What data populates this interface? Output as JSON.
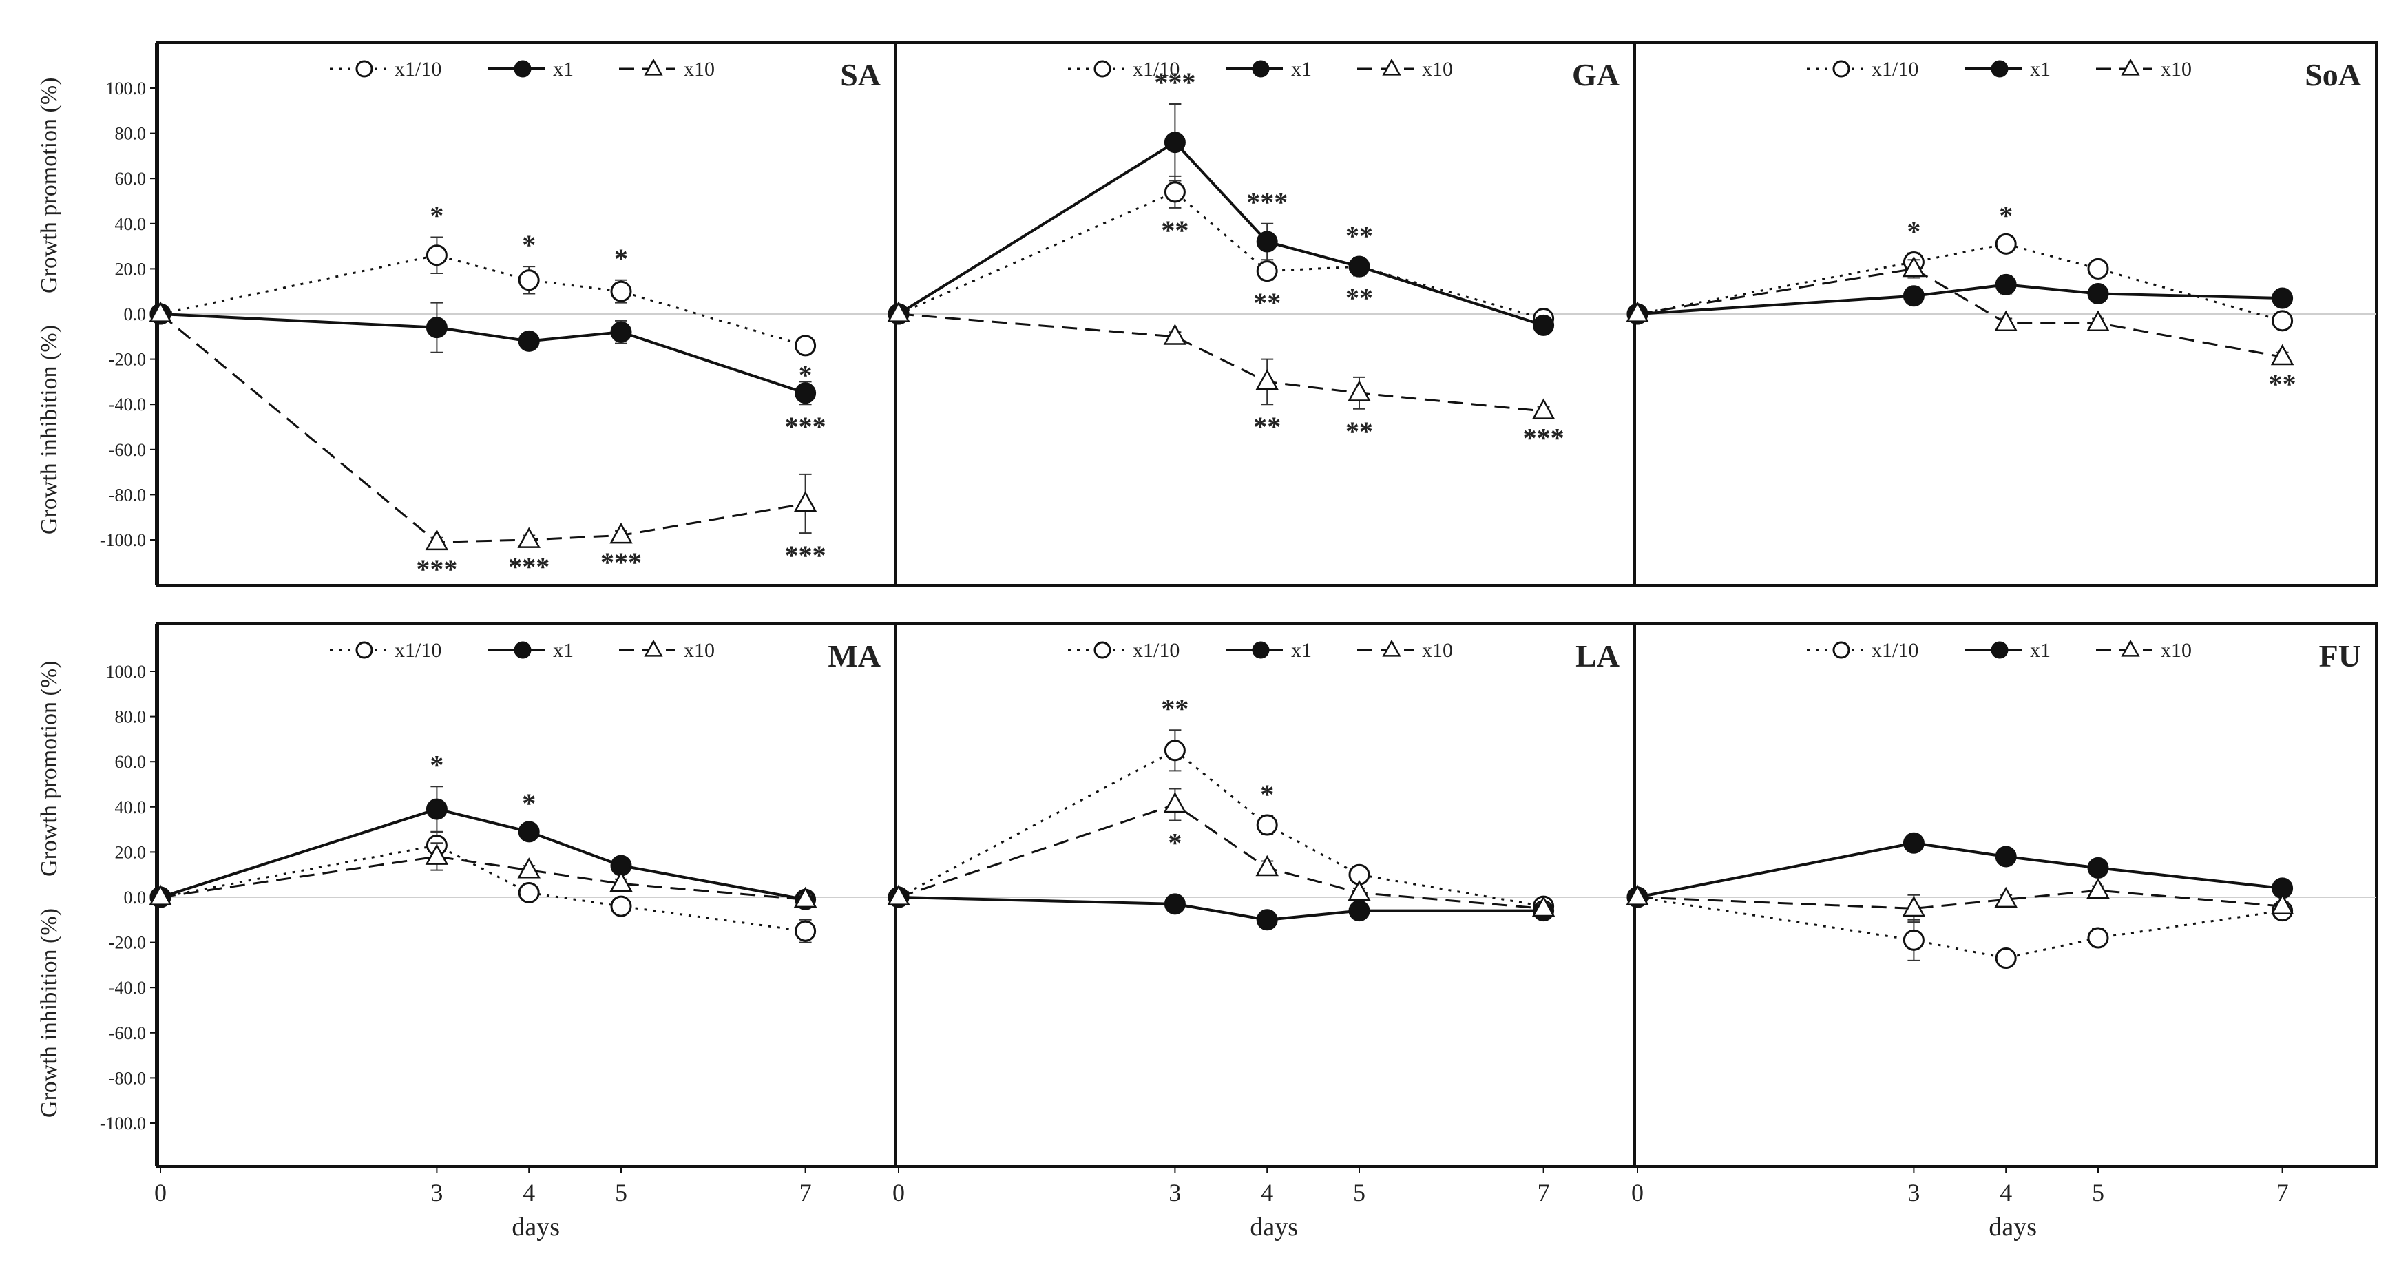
{
  "figure": {
    "ylabel_top": "Growth promotion (%)",
    "ylabel_bottom": "Growth inhibition (%)",
    "xlabel": "days",
    "yticks": [
      "100.0",
      "80.0",
      "60.0",
      "40.0",
      "20.0",
      "0.0",
      "-20.0",
      "-40.0",
      "-60.0",
      "-80.0",
      "-100.0"
    ],
    "xticks": [
      "0",
      "3",
      "4",
      "5",
      "7"
    ],
    "legend": [
      "x1/10",
      "x1",
      "x10"
    ]
  },
  "chart_data": [
    {
      "type": "line",
      "title": "SA",
      "xlabel": "days",
      "ylabel": "Growth promotion (%) / Growth inhibition (%)",
      "x": [
        0,
        3,
        4,
        5,
        7
      ],
      "ylim": [
        -120,
        120
      ],
      "series": [
        {
          "name": "x1/10",
          "values": [
            0,
            26,
            15,
            10,
            -14
          ],
          "errors": [
            0,
            8,
            6,
            5,
            3
          ],
          "stars": [
            "",
            "*",
            "*",
            "*",
            "*"
          ]
        },
        {
          "name": "x1",
          "values": [
            0,
            -6,
            -12,
            -8,
            -35
          ],
          "errors": [
            0,
            11,
            3,
            5,
            5
          ],
          "stars": [
            "",
            "",
            "",
            "",
            "***"
          ]
        },
        {
          "name": "x10",
          "values": [
            0,
            -101,
            -100,
            -98,
            -84
          ],
          "errors": [
            0,
            2,
            2,
            2,
            13
          ],
          "stars": [
            "",
            "***",
            "***",
            "***",
            "***"
          ]
        }
      ]
    },
    {
      "type": "line",
      "title": "GA",
      "xlabel": "days",
      "ylabel": "Growth promotion (%) / Growth inhibition (%)",
      "x": [
        0,
        3,
        4,
        5,
        7
      ],
      "ylim": [
        -120,
        120
      ],
      "series": [
        {
          "name": "x1/10",
          "values": [
            0,
            54,
            19,
            21,
            -2
          ],
          "errors": [
            0,
            7,
            4,
            4,
            2
          ],
          "stars": [
            "",
            "**",
            "**",
            "**",
            ""
          ]
        },
        {
          "name": "x1",
          "values": [
            0,
            76,
            32,
            21,
            -5
          ],
          "errors": [
            0,
            17,
            8,
            4,
            2
          ],
          "stars": [
            "",
            "***",
            "***",
            "**",
            ""
          ]
        },
        {
          "name": "x10",
          "values": [
            0,
            -10,
            -30,
            -35,
            -43
          ],
          "errors": [
            0,
            2,
            10,
            7,
            2
          ],
          "stars": [
            "",
            "",
            "**",
            "**",
            "***"
          ]
        }
      ]
    },
    {
      "type": "line",
      "title": "SoA",
      "xlabel": "days",
      "ylabel": "Growth promotion (%) / Growth inhibition (%)",
      "x": [
        0,
        3,
        4,
        5,
        7
      ],
      "ylim": [
        -120,
        120
      ],
      "series": [
        {
          "name": "x1/10",
          "values": [
            0,
            23,
            31,
            20,
            -3
          ],
          "errors": [
            0,
            4,
            3,
            2,
            2
          ],
          "stars": [
            "",
            "*",
            "*",
            "",
            ""
          ]
        },
        {
          "name": "x1",
          "values": [
            0,
            8,
            13,
            9,
            7
          ],
          "errors": [
            0,
            2,
            4,
            2,
            2
          ],
          "stars": [
            "",
            "",
            "",
            "",
            ""
          ]
        },
        {
          "name": "x10",
          "values": [
            0,
            20,
            -4,
            -4,
            -19
          ],
          "errors": [
            0,
            4,
            2,
            2,
            2
          ],
          "stars": [
            "",
            "",
            "",
            "",
            "**"
          ]
        }
      ]
    },
    {
      "type": "line",
      "title": "MA",
      "xlabel": "days",
      "ylabel": "Growth promotion (%) / Growth inhibition (%)",
      "x": [
        0,
        3,
        4,
        5,
        7
      ],
      "ylim": [
        -120,
        120
      ],
      "series": [
        {
          "name": "x1/10",
          "values": [
            0,
            23,
            2,
            -4,
            -15
          ],
          "errors": [
            0,
            6,
            3,
            2,
            5
          ],
          "stars": [
            "",
            "",
            "",
            "",
            ""
          ]
        },
        {
          "name": "x1",
          "values": [
            0,
            39,
            29,
            14,
            -1
          ],
          "errors": [
            0,
            10,
            3,
            3,
            2
          ],
          "stars": [
            "",
            "*",
            "*",
            "",
            ""
          ]
        },
        {
          "name": "x10",
          "values": [
            0,
            18,
            12,
            6,
            -1
          ],
          "errors": [
            0,
            6,
            2,
            2,
            2
          ],
          "stars": [
            "",
            "",
            "",
            "",
            ""
          ]
        }
      ]
    },
    {
      "type": "line",
      "title": "LA",
      "xlabel": "days",
      "ylabel": "Growth promotion (%) / Growth inhibition (%)",
      "x": [
        0,
        3,
        4,
        5,
        7
      ],
      "ylim": [
        -120,
        120
      ],
      "series": [
        {
          "name": "x1/10",
          "values": [
            0,
            65,
            32,
            10,
            -4
          ],
          "errors": [
            0,
            9,
            4,
            2,
            2
          ],
          "stars": [
            "",
            "**",
            "*",
            "",
            ""
          ]
        },
        {
          "name": "x1",
          "values": [
            0,
            -3,
            -10,
            -6,
            -6
          ],
          "errors": [
            0,
            2,
            2,
            2,
            2
          ],
          "stars": [
            "",
            "",
            "",
            "",
            ""
          ]
        },
        {
          "name": "x10",
          "values": [
            0,
            41,
            13,
            2,
            -5
          ],
          "errors": [
            0,
            7,
            3,
            2,
            2
          ],
          "stars": [
            "",
            "*",
            "",
            "",
            ""
          ]
        }
      ]
    },
    {
      "type": "line",
      "title": "FU",
      "xlabel": "days",
      "ylabel": "Growth promotion (%) / Growth inhibition (%)",
      "x": [
        0,
        3,
        4,
        5,
        7
      ],
      "ylim": [
        -120,
        120
      ],
      "series": [
        {
          "name": "x1/10",
          "values": [
            0,
            -19,
            -27,
            -18,
            -6
          ],
          "errors": [
            0,
            9,
            2,
            4,
            2
          ],
          "stars": [
            "",
            "",
            "",
            "",
            ""
          ]
        },
        {
          "name": "x1",
          "values": [
            0,
            24,
            18,
            13,
            4
          ],
          "errors": [
            0,
            2,
            2,
            2,
            2
          ],
          "stars": [
            "",
            "",
            "",
            "",
            ""
          ]
        },
        {
          "name": "x10",
          "values": [
            0,
            -5,
            -1,
            3,
            -4
          ],
          "errors": [
            0,
            6,
            2,
            2,
            2
          ],
          "stars": [
            "",
            "",
            "",
            "",
            ""
          ]
        }
      ]
    }
  ]
}
